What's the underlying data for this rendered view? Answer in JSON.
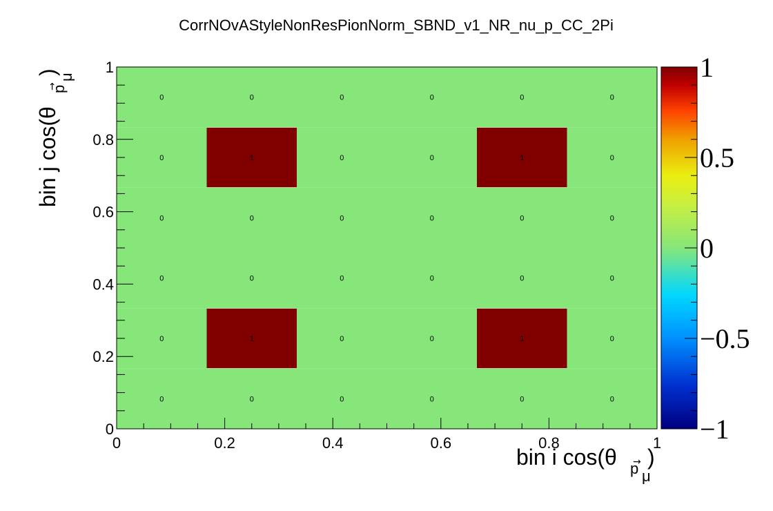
{
  "chart_data": {
    "type": "heatmap",
    "title": "CorrNOvAStyleNonResPionNorm_SBND_v1_NR_nu_p_CC_2Pi",
    "xlabel": "bin i cos(θ",
    "xlabel_sub": "p",
    "xlabel_subsub": "μ",
    "xlabel_close": ")",
    "ylabel": "bin j cos(θ",
    "ylabel_sub": "p",
    "ylabel_subsub": "μ",
    "ylabel_close": ")",
    "xlim": [
      0,
      1
    ],
    "ylim": [
      0,
      1
    ],
    "x_ticks": [
      "0",
      "0.2",
      "0.4",
      "0.6",
      "0.8",
      "1"
    ],
    "y_ticks": [
      "0",
      "0.2",
      "0.4",
      "0.6",
      "0.8",
      "1"
    ],
    "x_tick_values": [
      0,
      0.2,
      0.4,
      0.6,
      0.8,
      1
    ],
    "y_tick_values": [
      0,
      0.2,
      0.4,
      0.6,
      0.8,
      1
    ],
    "nx": 6,
    "ny": 6,
    "values": [
      [
        0,
        0,
        0,
        0,
        0,
        0
      ],
      [
        0,
        1,
        0,
        0,
        1,
        0
      ],
      [
        0,
        0,
        0,
        0,
        0,
        0
      ],
      [
        0,
        0,
        0,
        0,
        0,
        0
      ],
      [
        0,
        1,
        0,
        0,
        1,
        0
      ],
      [
        0,
        0,
        0,
        0,
        0,
        0
      ]
    ],
    "zlim": [
      -1,
      1
    ],
    "colorbar_ticks": [
      "1",
      "0.5",
      "0",
      "−0.5",
      "−1"
    ],
    "colorbar_tick_values": [
      1,
      0.5,
      0,
      -0.5,
      -1
    ],
    "grid": false,
    "colors": {
      "zero": "#86e67a",
      "one": "#800000"
    }
  }
}
